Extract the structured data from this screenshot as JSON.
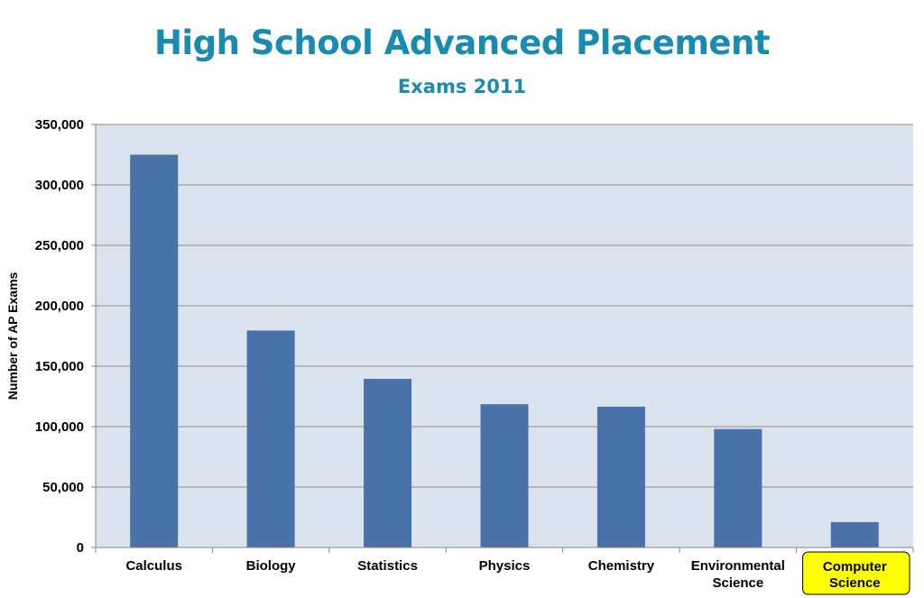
{
  "header": {
    "title": "High School Advanced Placement",
    "subtitle": "Exams 2011"
  },
  "chart_data": {
    "type": "bar",
    "title": "High School Advanced Placement",
    "subtitle": "Exams 2011",
    "xlabel": "",
    "ylabel": "Number of AP Exams",
    "categories": [
      [
        "Calculus"
      ],
      [
        "Biology"
      ],
      [
        "Statistics"
      ],
      [
        "Physics"
      ],
      [
        "Chemistry"
      ],
      [
        "Environmental",
        "Science"
      ],
      [
        "Computer",
        "Science"
      ]
    ],
    "values": [
      325000,
      179500,
      139500,
      118500,
      116500,
      98000,
      21000
    ],
    "ylim": [
      0,
      350000
    ],
    "yticks": [
      0,
      50000,
      100000,
      150000,
      200000,
      250000,
      300000,
      350000
    ],
    "ytick_labels": [
      "0",
      "50,000",
      "100,000",
      "150,000",
      "200,000",
      "250,000",
      "300,000",
      "350,000"
    ],
    "grid": true,
    "highlighted_category_index": 6,
    "colors": {
      "bar": "#4872a8",
      "plot_background": "#dbe3ef",
      "gridline": "#8c8c8c",
      "title": "#1a8bb0",
      "highlight_fill": "#ffff00",
      "highlight_border": "#000000"
    }
  }
}
